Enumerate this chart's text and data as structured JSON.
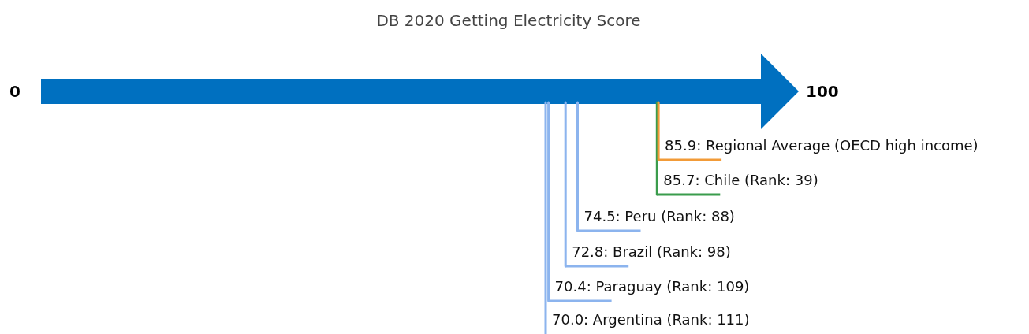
{
  "chart_data": {
    "type": "other",
    "title": "DB 2020 Getting Electricity Score",
    "categories": [
      "Regional Average (OECD high income)",
      "Chile (Rank: 39)",
      "Peru (Rank: 88)",
      "Brazil (Rank: 98)",
      "Paraguay (Rank: 109)",
      "Argentina (Rank: 111)"
    ],
    "values": [
      85.9,
      85.7,
      74.5,
      72.8,
      70.4,
      70.0
    ],
    "value_labels": [
      "85.9:",
      "85.7:",
      "74.5:",
      "72.8:",
      "70.4:",
      "70.0:"
    ],
    "colors": [
      "#f29b38",
      "#3a9c4c",
      "#8cb4ee",
      "#8cb4ee",
      "#8cb4ee",
      "#8cb4ee"
    ],
    "annotations": [
      "0",
      "100"
    ]
  }
}
